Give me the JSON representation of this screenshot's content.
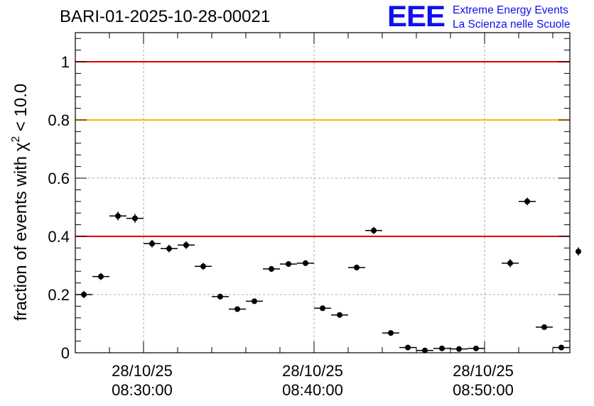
{
  "title": "BARI-01-2025-10-28-00021",
  "logo": {
    "mark": "EEE",
    "line1": "Extreme Energy Events",
    "line2": "La Scienza nelle Scuole",
    "color": "#1010ee"
  },
  "chart_data": {
    "type": "scatter",
    "title": "BARI-01-2025-10-28-00021",
    "xlabel": "",
    "ylabel": "fraction of events with χ² < 10.0",
    "ylabel_parts": {
      "before": "fraction of events with χ",
      "sup": "2",
      "after": " < 10.0"
    },
    "x_unit": "minutes",
    "xlim": [
      "08:26:00",
      "08:55:00"
    ],
    "ylim": [
      0,
      1.1
    ],
    "yticks": [
      0,
      0.2,
      0.4,
      0.6,
      0.8,
      1
    ],
    "ytick_labels": [
      "0",
      "0.2",
      "0.4",
      "0.6",
      "0.8",
      "1"
    ],
    "xticks": [
      {
        "time": "08:30:00",
        "date": "28/10/25",
        "label_time": "08:30:00"
      },
      {
        "time": "08:40:00",
        "date": "28/10/25",
        "label_time": "08:40:00"
      },
      {
        "time": "08:50:00",
        "date": "28/10/25",
        "label_time": "08:50:00"
      }
    ],
    "grid": true,
    "reference_lines": [
      {
        "y": 1.0,
        "color": "#dd0000"
      },
      {
        "y": 0.8,
        "color": "#ffbb00"
      },
      {
        "y": 0.4,
        "color": "#dd0000"
      }
    ],
    "bin_width_min": 1,
    "points": [
      {
        "t": "08:26:30",
        "y": 0.2,
        "err": 0.012
      },
      {
        "t": "08:27:30",
        "y": 0.262,
        "err": 0.012
      },
      {
        "t": "08:28:30",
        "y": 0.47,
        "err": 0.015
      },
      {
        "t": "08:29:30",
        "y": 0.462,
        "err": 0.015
      },
      {
        "t": "08:30:30",
        "y": 0.375,
        "err": 0.013
      },
      {
        "t": "08:31:30",
        "y": 0.358,
        "err": 0.013
      },
      {
        "t": "08:32:30",
        "y": 0.37,
        "err": 0.013
      },
      {
        "t": "08:33:30",
        "y": 0.297,
        "err": 0.012
      },
      {
        "t": "08:34:30",
        "y": 0.193,
        "err": 0.01
      },
      {
        "t": "08:35:30",
        "y": 0.15,
        "err": 0.008
      },
      {
        "t": "08:36:30",
        "y": 0.177,
        "err": 0.008
      },
      {
        "t": "08:37:30",
        "y": 0.288,
        "err": 0.01
      },
      {
        "t": "08:38:30",
        "y": 0.305,
        "err": 0.01
      },
      {
        "t": "08:39:30",
        "y": 0.308,
        "err": 0.01
      },
      {
        "t": "08:40:30",
        "y": 0.153,
        "err": 0.007
      },
      {
        "t": "08:41:30",
        "y": 0.13,
        "err": 0.007
      },
      {
        "t": "08:42:30",
        "y": 0.293,
        "err": 0.01
      },
      {
        "t": "08:43:30",
        "y": 0.42,
        "err": 0.012
      },
      {
        "t": "08:44:30",
        "y": 0.068,
        "err": 0.006
      },
      {
        "t": "08:45:30",
        "y": 0.018,
        "err": 0.004
      },
      {
        "t": "08:46:30",
        "y": 0.008,
        "err": 0.003
      },
      {
        "t": "08:47:30",
        "y": 0.015,
        "err": 0.004
      },
      {
        "t": "08:48:30",
        "y": 0.013,
        "err": 0.004
      },
      {
        "t": "08:49:30",
        "y": 0.015,
        "err": 0.004
      },
      {
        "t": "08:51:30",
        "y": 0.308,
        "err": 0.014
      },
      {
        "t": "08:52:30",
        "y": 0.52,
        "err": 0.013
      },
      {
        "t": "08:53:30",
        "y": 0.088,
        "err": 0.006
      },
      {
        "t": "08:54:30",
        "y": 0.018,
        "err": 0.004
      },
      {
        "t": "08:55:30",
        "y": 0.348,
        "err": 0.014
      }
    ],
    "colors": {
      "points": "#000000",
      "grid": "#aaaaaa",
      "axis": "#000000"
    }
  }
}
